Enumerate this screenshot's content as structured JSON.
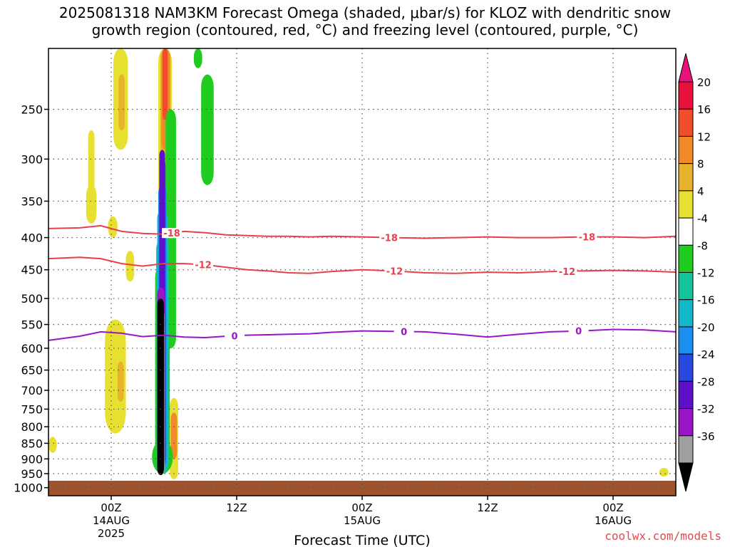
{
  "title_line1": "2025081318 NAM3KM Forecast Omega (shaded, μbar/s) for KLOZ with dendritic snow",
  "title_line2": "growth region (contoured, red, °C) and freezing level (contoured, purple, °C)",
  "credit": "coolwx.com/models",
  "chart_data": {
    "type": "heatmap",
    "title": "2025081318 NAM3KM Forecast Omega (shaded, μbar/s) for KLOZ with dendritic snow growth region (contoured, red, °C) and freezing level (contoured, purple, °C)",
    "xlabel": "Forecast Time (UTC)",
    "ylabel": "",
    "xlim_hours": [
      -6,
      54
    ],
    "ylim_hpa": [
      200,
      1030
    ],
    "y_scale": "log-pressure",
    "grid": true,
    "y_ticks": [
      "250",
      "300",
      "350",
      "400",
      "450",
      "500",
      "550",
      "600",
      "650",
      "700",
      "750",
      "800",
      "850",
      "900",
      "950",
      "1000"
    ],
    "x_ticks": [
      {
        "h": 0,
        "label": "00Z",
        "sub1": "14AUG",
        "sub2": "2025"
      },
      {
        "h": 12,
        "label": "12Z",
        "sub1": "",
        "sub2": ""
      },
      {
        "h": 24,
        "label": "00Z",
        "sub1": "15AUG",
        "sub2": ""
      },
      {
        "h": 36,
        "label": "12Z",
        "sub1": "",
        "sub2": ""
      },
      {
        "h": 48,
        "label": "00Z",
        "sub1": "16AUG",
        "sub2": ""
      }
    ],
    "colorbar": {
      "labels": [
        "20",
        "16",
        "12",
        "8",
        "4",
        "-4",
        "-8",
        "-12",
        "-16",
        "-20",
        "-24",
        "-28",
        "-32",
        "-36"
      ],
      "colors": [
        "#e8103c",
        "#f24d2a",
        "#f08a28",
        "#e8b32c",
        "#e8e030",
        "#ffffff",
        "#1fcc1f",
        "#14c49a",
        "#10b8c8",
        "#1c8ef0",
        "#2848e0",
        "#5c10c8",
        "#9a14c8",
        "#a0a0a0",
        "#000000"
      ],
      "top_arrow_color": "#e8107a",
      "bottom_arrow_color": "#000000"
    },
    "omega_regions": [
      {
        "color": "#e8e030",
        "h": [
          0.2,
          1.6
        ],
        "p": [
          200,
          290
        ]
      },
      {
        "color": "#e8e030",
        "h": [
          -2.2,
          -1.6
        ],
        "p": [
          270,
          340
        ]
      },
      {
        "color": "#e8e030",
        "h": [
          -2.4,
          -1.4
        ],
        "p": [
          330,
          380
        ]
      },
      {
        "color": "#e8e030",
        "h": [
          -0.3,
          0.6
        ],
        "p": [
          370,
          400
        ]
      },
      {
        "color": "#e8e030",
        "h": [
          1.4,
          2.2
        ],
        "p": [
          420,
          470
        ]
      },
      {
        "color": "#e8e030",
        "h": [
          -0.6,
          1.4
        ],
        "p": [
          540,
          820
        ]
      },
      {
        "color": "#e8b32c",
        "h": [
          0.6,
          1.2
        ],
        "p": [
          630,
          730
        ]
      },
      {
        "color": "#e8e030",
        "h": [
          -6,
          -5.2
        ],
        "p": [
          830,
          880
        ]
      },
      {
        "color": "#e8b32c",
        "h": [
          0.7,
          1.3
        ],
        "p": [
          220,
          270
        ]
      },
      {
        "color": "#e8e030",
        "h": [
          4.5,
          5.8
        ],
        "p": [
          200,
          350
        ]
      },
      {
        "color": "#e8b32c",
        "h": [
          4.7,
          5.7
        ],
        "p": [
          200,
          330
        ]
      },
      {
        "color": "#f08a28",
        "h": [
          4.8,
          5.6
        ],
        "p": [
          200,
          290
        ]
      },
      {
        "color": "#f24d2a",
        "h": [
          4.9,
          5.4
        ],
        "p": [
          200,
          260
        ]
      },
      {
        "color": "#e8e030",
        "h": [
          5.6,
          6.4
        ],
        "p": [
          720,
          970
        ]
      },
      {
        "color": "#f08a28",
        "h": [
          5.7,
          6.3
        ],
        "p": [
          760,
          900
        ]
      },
      {
        "color": "#1fcc1f",
        "h": [
          5.2,
          6.2
        ],
        "p": [
          250,
          600
        ]
      },
      {
        "color": "#1fcc1f",
        "h": [
          3.9,
          5.9
        ],
        "p": [
          840,
          950
        ]
      },
      {
        "color": "#1fcc1f",
        "h": [
          5.3,
          5.9
        ],
        "p": [
          380,
          395
        ]
      },
      {
        "color": "#1fcc1f",
        "h": [
          8.6,
          9.8
        ],
        "p": [
          220,
          330
        ]
      },
      {
        "color": "#1fcc1f",
        "h": [
          7.9,
          8.7
        ],
        "p": [
          200,
          215
        ]
      },
      {
        "color": "#1fcc1f",
        "h": [
          4.2,
          5.6
        ],
        "p": [
          440,
          950
        ]
      },
      {
        "color": "#14c49a",
        "h": [
          4.3,
          5.5
        ],
        "p": [
          400,
          950
        ]
      },
      {
        "color": "#10b8c8",
        "h": [
          4.4,
          5.4
        ],
        "p": [
          360,
          940
        ]
      },
      {
        "color": "#1c8ef0",
        "h": [
          4.5,
          5.3
        ],
        "p": [
          330,
          930
        ]
      },
      {
        "color": "#2848e0",
        "h": [
          4.6,
          5.2
        ],
        "p": [
          300,
          920
        ]
      },
      {
        "color": "#5c10c8",
        "h": [
          4.6,
          5.15
        ],
        "p": [
          290,
          910
        ]
      },
      {
        "color": "#9a14c8",
        "h": [
          4.4,
          5.1
        ],
        "p": [
          480,
          950
        ]
      },
      {
        "color": "#a0a0a0",
        "h": [
          4.4,
          5.1
        ],
        "p": [
          520,
          955
        ]
      },
      {
        "color": "#000000",
        "h": [
          4.4,
          5.05
        ],
        "p": [
          500,
          955
        ]
      },
      {
        "color": "#e8e030",
        "h": [
          52.4,
          53.3
        ],
        "p": [
          930,
          960
        ]
      }
    ],
    "terrain": {
      "color": "#a0522d",
      "p_top": 975
    },
    "isotherms": [
      {
        "name": "-18",
        "color": "#e8404a",
        "label_hours": [
          5.8,
          26.6,
          45.5
        ],
        "h": [
          -6,
          -3,
          -1,
          1,
          3,
          5,
          7,
          9,
          11,
          13,
          15,
          17,
          19,
          21,
          24,
          27,
          30,
          33,
          36,
          39,
          42,
          45,
          48,
          51,
          54
        ],
        "p": [
          387,
          386,
          383,
          391,
          394,
          395,
          391,
          393,
          396,
          397,
          398,
          398,
          399,
          398,
          399,
          400,
          401,
          400,
          399,
          400,
          400,
          399,
          399,
          400,
          398
        ]
      },
      {
        "name": "-12",
        "color": "#e8404a",
        "label_hours": [
          8.8,
          27.1,
          43.6
        ],
        "h": [
          -6,
          -3,
          -1,
          1,
          3,
          5,
          7,
          9,
          11,
          13,
          15,
          17,
          19,
          21,
          24,
          27,
          30,
          33,
          36,
          39,
          42,
          45,
          48,
          51,
          54
        ],
        "p": [
          432,
          430,
          432,
          440,
          444,
          440,
          440,
          442,
          446,
          450,
          452,
          455,
          456,
          453,
          450,
          452,
          455,
          456,
          454,
          455,
          453,
          452,
          451,
          452,
          454
        ]
      },
      {
        "name": "0",
        "color": "#9a14c8",
        "label_hours": [
          11.8,
          28.0,
          44.7
        ],
        "h": [
          -6,
          -3,
          -1,
          1,
          3,
          5,
          7,
          9,
          11,
          13,
          15,
          17,
          19,
          21,
          24,
          27,
          30,
          33,
          36,
          39,
          42,
          45,
          48,
          51,
          54
        ],
        "p": [
          583,
          574,
          565,
          568,
          575,
          572,
          576,
          577,
          574,
          572,
          571,
          570,
          569,
          566,
          563,
          564,
          565,
          570,
          576,
          570,
          565,
          563,
          560,
          561,
          565
        ]
      }
    ]
  }
}
